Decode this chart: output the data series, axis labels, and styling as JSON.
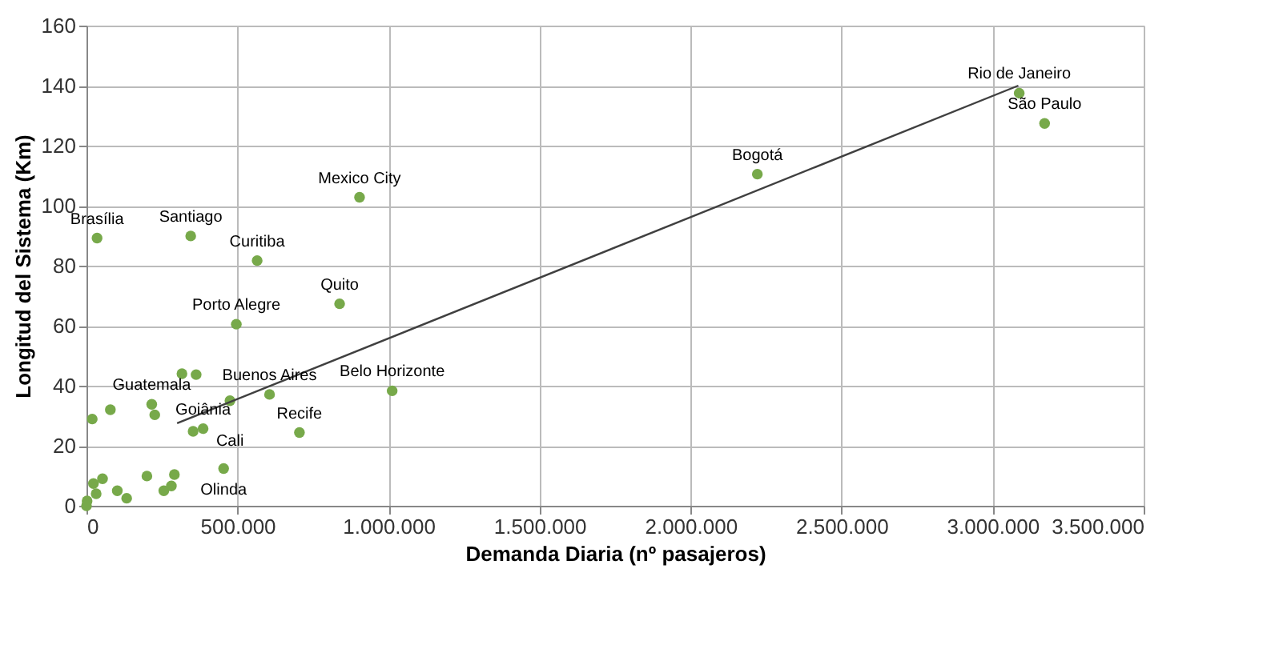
{
  "chart_data": {
    "type": "scatter",
    "xlabel": "Demanda Diaria (nº pasajeros)",
    "ylabel": "Longitud del Sistema (Km)",
    "xlim": [
      0,
      3500000
    ],
    "ylim": [
      0,
      160
    ],
    "xticks": [
      {
        "value": 0,
        "label": "0"
      },
      {
        "value": 500000,
        "label": "500.000"
      },
      {
        "value": 1000000,
        "label": "1.000.000"
      },
      {
        "value": 1500000,
        "label": "1.500.000"
      },
      {
        "value": 2000000,
        "label": "2.000.000"
      },
      {
        "value": 2500000,
        "label": "2.500.000"
      },
      {
        "value": 3000000,
        "label": "3.000.000"
      },
      {
        "value": 3500000,
        "label": "3.500.000"
      }
    ],
    "yticks": [
      0,
      20,
      40,
      60,
      80,
      100,
      120,
      140,
      160
    ],
    "grid": true,
    "legend": false,
    "series": [
      {
        "type": "scatter",
        "marker": "circle",
        "color": "#77a94a",
        "x": [
          3088000,
          3172000,
          2221000,
          904000,
          838000,
          1012000,
          705000,
          606000,
          565000,
          496000,
          35000,
          345000,
          316000,
          363000,
          216000,
          226000,
          353000,
          386000,
          475000,
          454000,
          2000,
          0,
          32000,
          102000,
          133000,
          256000,
          281000,
          291000,
          200000,
          79000,
          19000,
          23000,
          53000
        ],
        "values": [
          137.5,
          127.4,
          110.5,
          102.8,
          67.3,
          38.3,
          24.4,
          37.1,
          81.7,
          60.5,
          89.2,
          89.9,
          44,
          43.7,
          33.8,
          30.3,
          24.8,
          25.7,
          35,
          12.4,
          1.6,
          0,
          4,
          5,
          2.5,
          5,
          6.6,
          10.4,
          9.9,
          32,
          28.9,
          7.4,
          9
        ]
      },
      {
        "type": "line",
        "marker": "none",
        "line_style": "solid",
        "color": "#404040",
        "x": [
          300000,
          3085000
        ],
        "values": [
          27.5,
          140
        ]
      }
    ],
    "annotations": [
      {
        "text": "Rio de Janeiro",
        "x": 3088000,
        "y": 137.5
      },
      {
        "text": "São Paulo",
        "x": 3172000,
        "y": 127.4
      },
      {
        "text": "Bogotá",
        "x": 2221000,
        "y": 110.5
      },
      {
        "text": "Mexico City",
        "x": 904000,
        "y": 102.8
      },
      {
        "text": "Quito",
        "x": 838000,
        "y": 67.3
      },
      {
        "text": "Belo Horizonte",
        "x": 1012000,
        "y": 38.3
      },
      {
        "text": "Recife",
        "x": 705000,
        "y": 24.4
      },
      {
        "text": "Buenos Aires",
        "x": 606000,
        "y": 37.1
      },
      {
        "text": "Curitiba",
        "x": 565000,
        "y": 81.7
      },
      {
        "text": "Porto Alegre",
        "x": 496000,
        "y": 60.5
      },
      {
        "text": "Brasília",
        "x": 35000,
        "y": 89.2
      },
      {
        "text": "Santiago",
        "x": 345000,
        "y": 89.9
      },
      {
        "text": "Guatemala",
        "x": 216000,
        "y": 33.8
      },
      {
        "text": "Goiânia",
        "x": 386000,
        "y": 25.7
      },
      {
        "text": "Cali",
        "x": 475000,
        "y": 35
      },
      {
        "text": "Olinda",
        "x": 454000,
        "y": 12.4
      }
    ]
  }
}
